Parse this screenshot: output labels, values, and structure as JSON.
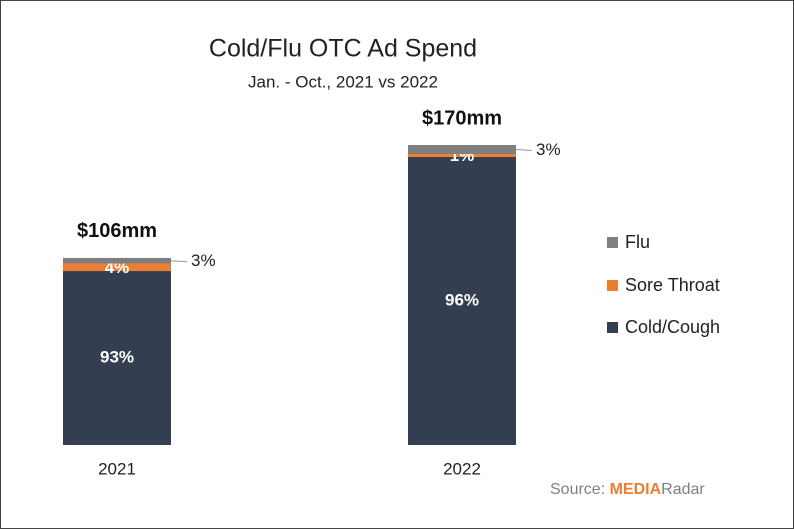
{
  "chart_data": {
    "type": "stacked-bar",
    "title": "Cold/Flu OTC Ad Spend",
    "subtitle": "Jan. - Oct., 2021 vs 2022",
    "categories": [
      "2021",
      "2022"
    ],
    "totals": [
      {
        "value": 106,
        "label": "$106mm"
      },
      {
        "value": 170,
        "label": "$170mm"
      }
    ],
    "series": [
      {
        "name": "Cold/Cough",
        "color": "#333f50",
        "values": [
          93,
          96
        ],
        "value_labels": [
          "93%",
          "96%"
        ]
      },
      {
        "name": "Sore Throat",
        "color": "#ed7d31",
        "values": [
          4,
          1
        ],
        "value_labels": [
          "4%",
          "1%"
        ]
      },
      {
        "name": "Flu",
        "color": "#7f7f7f",
        "values": [
          3,
          3
        ],
        "value_labels": [
          "3%",
          "3%"
        ]
      }
    ],
    "source": {
      "label": "Source:",
      "brand_first": "MEDIA",
      "brand_second": "Radar"
    }
  }
}
